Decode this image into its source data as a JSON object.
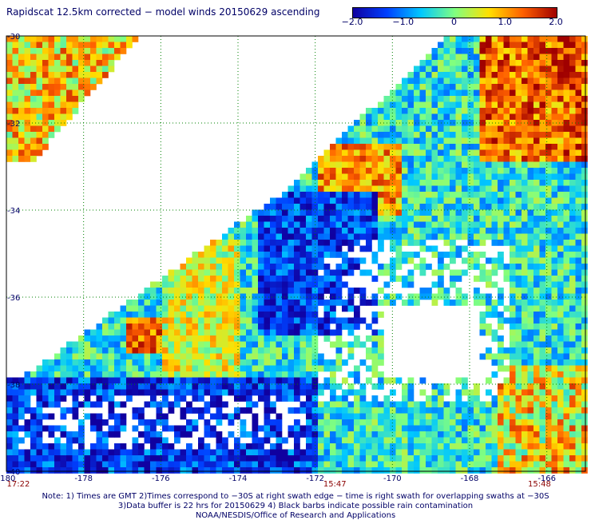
{
  "title": "Rapidscat 12.5km corrected − model winds 20150629 ascending",
  "colorbar": {
    "ticks": [
      "−2.0",
      "−1.0",
      "0",
      "1.0",
      "2.0"
    ],
    "tick_values": [
      -2.0,
      -1.0,
      0.0,
      1.0,
      2.0
    ],
    "colors": [
      "#1000a0",
      "#0040ff",
      "#00c8ff",
      "#80ff80",
      "#ffe000",
      "#ff6000",
      "#a00000"
    ]
  },
  "map": {
    "lon_range": [
      -180,
      -165
    ],
    "lat_range": [
      -30,
      -40
    ],
    "lon_ticks": [
      "-180",
      "-178",
      "-176",
      "-174",
      "-172",
      "-170",
      "-168",
      "-166"
    ],
    "lon_tick_values": [
      -180,
      -178,
      -176,
      -174,
      -172,
      -170,
      -168,
      -166
    ],
    "lat_ticks": [
      "-30",
      "-32",
      "-34",
      "-36",
      "-38",
      "-40"
    ],
    "lat_tick_values": [
      -30,
      -32,
      -34,
      -36,
      -38,
      -40
    ],
    "gridline_color": "#008000"
  },
  "times": [
    {
      "label": "17:22",
      "lon": -179.7
    },
    {
      "label": "15:47",
      "lon": -171.5
    },
    {
      "label": "15:48",
      "lon": -166.2
    }
  ],
  "notes": {
    "line1": "Note: 1) Times are GMT 2)Times correspond to −30S at right swath edge − time is right swath for overlapping swaths at −30S",
    "line2": "3)Data buffer is 22 hrs for 20150629 4) Black barbs indicate possible rain contamination",
    "line3": "NOAA/NESDIS/Office of Research and Applications"
  }
}
